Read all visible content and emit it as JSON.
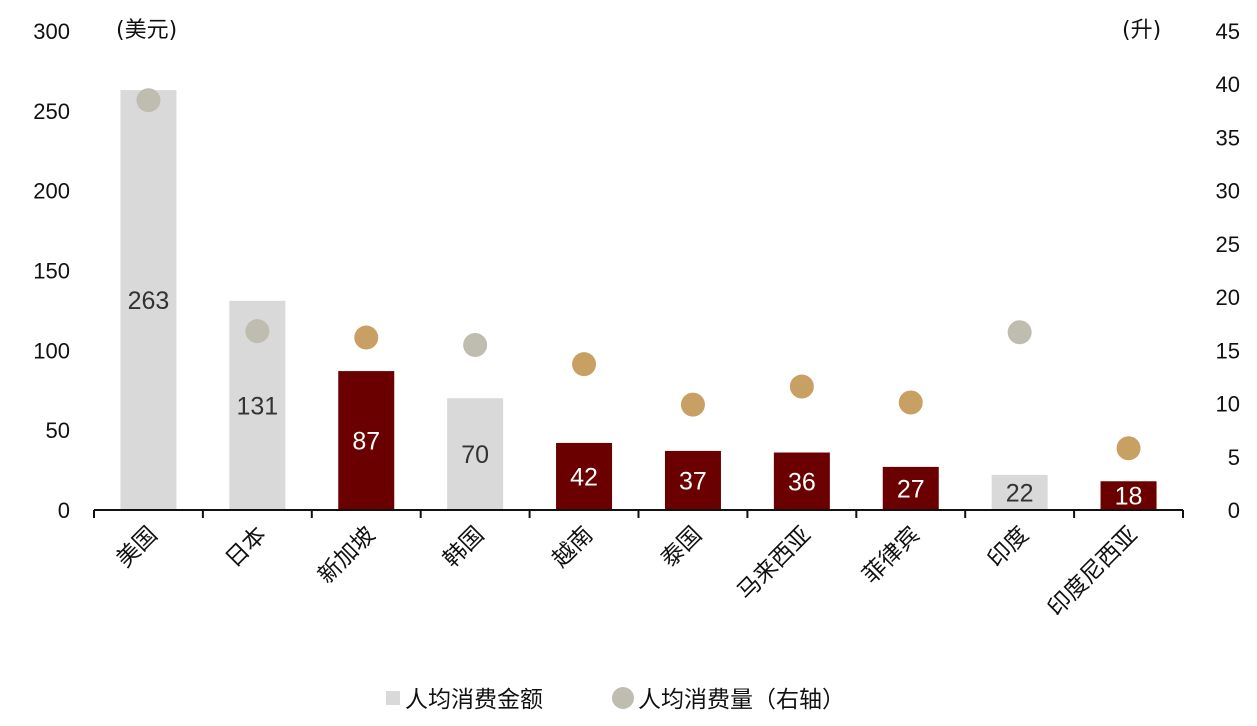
{
  "chart_data": {
    "type": "bar",
    "categories": [
      "美国",
      "日本",
      "新加坡",
      "韩国",
      "越南",
      "泰国",
      "马来西亚",
      "菲律宾",
      "印度",
      "印度尼西亚"
    ],
    "highlight": [
      false,
      false,
      true,
      false,
      true,
      true,
      true,
      true,
      false,
      true
    ],
    "series": [
      {
        "name": "人均消费金额",
        "kind": "bar",
        "axis": "left",
        "values": [
          263,
          131,
          87,
          70,
          42,
          37,
          36,
          27,
          22,
          18
        ]
      },
      {
        "name": "人均消费量（右轴）",
        "kind": "scatter",
        "axis": "right",
        "values": [
          38.5,
          16.8,
          16.2,
          15.5,
          13.7,
          9.9,
          11.6,
          10.1,
          16.7,
          5.8
        ]
      }
    ],
    "left_axis": {
      "unit": "(美元)",
      "ylim": [
        0,
        300
      ],
      "ticks": [
        0,
        50,
        100,
        150,
        200,
        250,
        300
      ]
    },
    "right_axis": {
      "unit": "(升)",
      "ylim": [
        0,
        45
      ],
      "ticks": [
        0,
        5,
        10,
        15,
        20,
        25,
        30,
        35,
        40,
        45
      ]
    },
    "legend_position": "bottom",
    "grid": false,
    "colors": {
      "bar_default": "#d9d9d9",
      "bar_highlight": "#6b0000",
      "dot_default": "#bfbdaf",
      "dot_highlight": "#c9a063",
      "label_on_light": "#333333",
      "label_on_dark": "#ffffff",
      "legend_bar": "#d9d9d9",
      "legend_dot": "#bfbdaf"
    }
  }
}
